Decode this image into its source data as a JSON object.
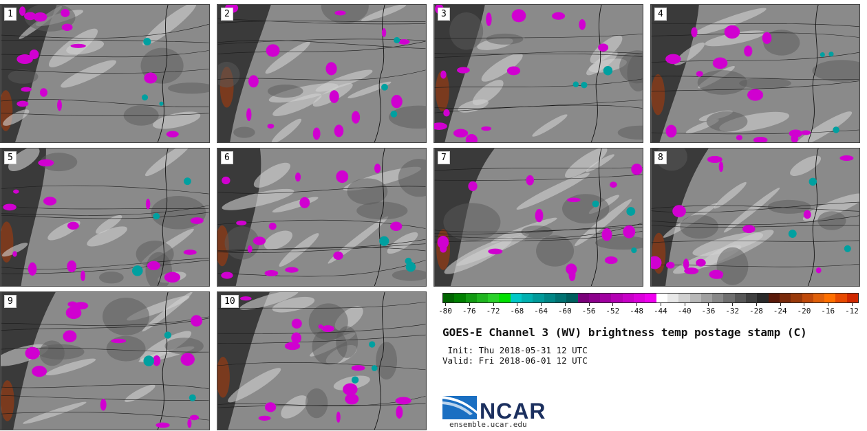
{
  "panels": [
    {
      "label": "1"
    },
    {
      "label": "2"
    },
    {
      "label": "3"
    },
    {
      "label": "4"
    },
    {
      "label": "5"
    },
    {
      "label": "6"
    },
    {
      "label": "7"
    },
    {
      "label": "8"
    },
    {
      "label": "9"
    },
    {
      "label": "10"
    }
  ],
  "colorbar": {
    "colors": [
      "#006400",
      "#008000",
      "#129a12",
      "#1fb51f",
      "#2ad12a",
      "#00e000",
      "#00c8c8",
      "#00b0b0",
      "#009a9a",
      "#008686",
      "#007272",
      "#005e5e",
      "#7a007a",
      "#8c008c",
      "#a000a0",
      "#b400b4",
      "#c800c8",
      "#dc00dc",
      "#f000f0",
      "#ffffff",
      "#e8e8e8",
      "#d0d0d0",
      "#b8b8b8",
      "#a0a0a0",
      "#888888",
      "#707070",
      "#585858",
      "#404040",
      "#2a2a2a",
      "#5a1a0a",
      "#7a2a0a",
      "#9a3a0a",
      "#c04a0a",
      "#e0600a",
      "#ff7000",
      "#e84a00",
      "#d02800"
    ],
    "tick_labels": [
      "-80",
      "-76",
      "-72",
      "-68",
      "-64",
      "-60",
      "-56",
      "-52",
      "-48",
      "-44",
      "-40",
      "-36",
      "-32",
      "-28",
      "-24",
      "-20",
      "-16",
      "-12"
    ]
  },
  "title": "GOES-E Channel 3 (WV) brightness temp postage stamp (C)",
  "init": " Init: Thu 2018-05-31 12 UTC",
  "valid": "Valid: Fri 2018-06-01 12 UTC",
  "logo": {
    "name": "NCAR",
    "url": "ensemble.ucar.edu"
  }
}
